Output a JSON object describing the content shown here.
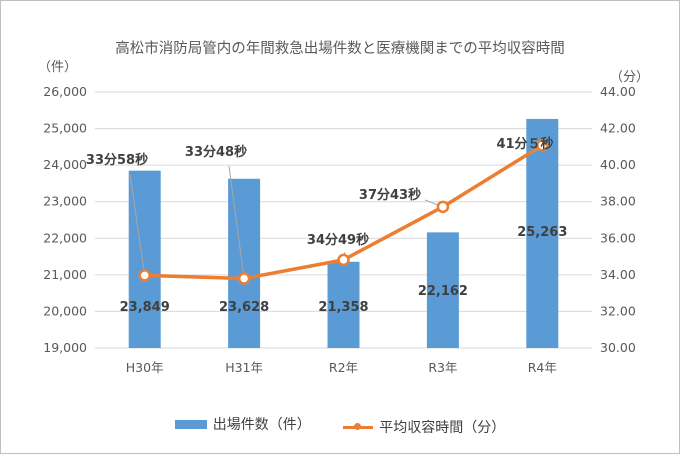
{
  "chart_data": {
    "type": "bar+line",
    "title": "高松市消防局管内の年間救急出場件数と医療機関までの平均収容時間",
    "y1_unit": "（件）",
    "y2_unit": "（分）",
    "categories": [
      "H30年",
      "H31年",
      "R2年",
      "R3年",
      "R4年"
    ],
    "y1_ticks": [
      "19,000",
      "20,000",
      "21,000",
      "22,000",
      "23,000",
      "24,000",
      "25,000",
      "26,000"
    ],
    "y2_ticks": [
      "30.00",
      "32.00",
      "34.00",
      "36.00",
      "38.00",
      "40.00",
      "42.00",
      "44.00"
    ],
    "y1lim": [
      19000,
      26000
    ],
    "y2lim": [
      30,
      44
    ],
    "grid": true,
    "legend_position": "bottom",
    "series": [
      {
        "name": "出場件数（件）",
        "type": "bar",
        "axis": "left",
        "color": "#5b9bd5",
        "values": [
          23849,
          23628,
          21358,
          22162,
          25263
        ],
        "labels": [
          "23,849",
          "23,628",
          "21,358",
          "22,162",
          "25,263"
        ]
      },
      {
        "name": "平均収容時間（分）",
        "type": "line",
        "axis": "right",
        "color": "#ed7d31",
        "values": [
          33.97,
          33.8,
          34.82,
          37.72,
          41.08
        ],
        "labels": [
          "33分58秒",
          "33分48秒",
          "34分49秒",
          "37分43秒",
          "41分５秒"
        ]
      }
    ]
  }
}
